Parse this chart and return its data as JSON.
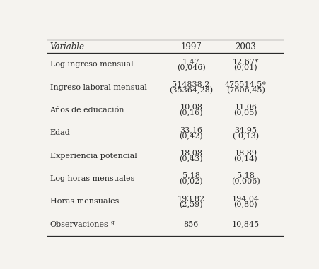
{
  "columns": [
    "Variable",
    "1997",
    "2003"
  ],
  "rows": [
    {
      "variable": "Log ingreso mensual",
      "val1": "1,47",
      "se1": "(0,046)",
      "val2": "12,67*",
      "se2": "(0,01)",
      "single": false
    },
    {
      "variable": "Ingreso laboral mensual",
      "val1": "514838,2",
      "se1": "(35364,28)",
      "val2": "475514,5*",
      "se2": "(7606,45)",
      "single": false
    },
    {
      "variable": "Años de educación",
      "val1": "10,08",
      "se1": "(0,16)",
      "val2": "11,06",
      "se2": "(0,05)",
      "single": false
    },
    {
      "variable": "Edad",
      "val1": "33,16",
      "se1": "(0,42)",
      "val2": "34,95",
      "se2": "( 0,13)",
      "single": false
    },
    {
      "variable": "Experiencia potencial",
      "val1": "18,08",
      "se1": "(0,43)",
      "val2": "18,89",
      "se2": "(0,14)",
      "single": false
    },
    {
      "variable": "Log horas mensuales",
      "val1": "5,18",
      "se1": "(0,02)",
      "val2": "5,18",
      "se2": "(0,006)",
      "single": false
    },
    {
      "variable": "Horas mensuales",
      "val1": "193,82",
      "se1": "(2,59)",
      "val2": "194,04",
      "se2": "(0,80)",
      "single": false
    },
    {
      "variable": "Observaciones",
      "superscript": "g",
      "val1": "856",
      "se1": "",
      "val2": "10,845",
      "se2": "",
      "single": true
    }
  ],
  "bg_color": "#f5f3ef",
  "text_color": "#2a2a2a",
  "header_fontsize": 8.5,
  "body_fontsize": 8.0,
  "fig_width": 4.52,
  "fig_height": 3.81
}
